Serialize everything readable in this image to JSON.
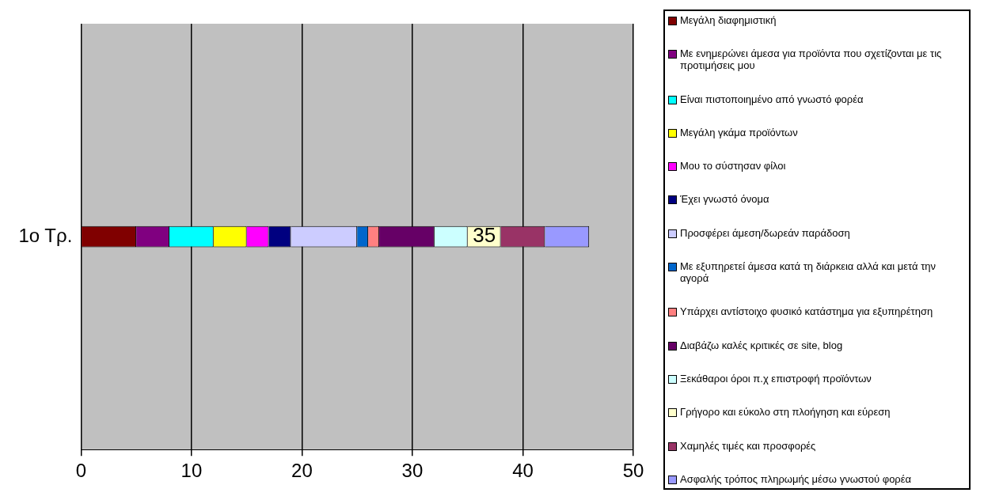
{
  "chart_data": {
    "type": "bar",
    "orientation": "horizontal",
    "stacked": true,
    "categories": [
      "1ο Τρ."
    ],
    "xlim": [
      0,
      50
    ],
    "xticks": [
      0,
      10,
      20,
      30,
      40,
      50
    ],
    "grid": "x",
    "legend": "right",
    "annotations": [
      "35"
    ],
    "series": [
      {
        "name": "Μεγάλη διαφημιστική",
        "color": "#800000",
        "values": [
          5
        ]
      },
      {
        "name": "Με ενημερώνει άμεσα για προϊόντα που σχετίζονται με τις προτιμήσεις μου",
        "color": "#800080",
        "values": [
          3
        ]
      },
      {
        "name": "Είναι πιστοποιημένο από γνωστό φορέα",
        "color": "#00ffff",
        "values": [
          4
        ]
      },
      {
        "name": "Μεγάλη γκάμα προϊόντων",
        "color": "#ffff00",
        "values": [
          3
        ]
      },
      {
        "name": "Μου το σύστησαν φίλοι",
        "color": "#ff00ff",
        "values": [
          2
        ]
      },
      {
        "name": "Έχει γνωστό όνομα",
        "color": "#000080",
        "values": [
          2
        ]
      },
      {
        "name": "Προσφέρει άμεση/δωρεάν παράδοση",
        "color": "#ccccff",
        "values": [
          6
        ]
      },
      {
        "name": "Με εξυπηρετεί άμεσα κατά τη διάρκεια αλλά και μετά την αγορά",
        "color": "#0066cc",
        "values": [
          1
        ]
      },
      {
        "name": "Υπάρχει αντίστοιχο φυσικό κατάστημα για εξυπηρέτηση",
        "color": "#ff8080",
        "values": [
          1
        ]
      },
      {
        "name": "Διαβάζω καλές κριτικές σε site, blog",
        "color": "#660066",
        "values": [
          5
        ]
      },
      {
        "name": "Ξεκάθαροι όροι π.χ επιστροφή προϊόντων",
        "color": "#ccffff",
        "values": [
          3
        ]
      },
      {
        "name": "Γρήγορο και εύκολο στη πλοήγηση και εύρεση",
        "color": "#ffffcc",
        "values": [
          3
        ]
      },
      {
        "name": "Χαμηλές τιμές και προσφορές",
        "color": "#993366",
        "values": [
          4
        ]
      },
      {
        "name": "Ασφαλής τρόπος πληρωμής μέσω γνωστού φορέα",
        "color": "#9999ff",
        "values": [
          4
        ]
      }
    ]
  }
}
